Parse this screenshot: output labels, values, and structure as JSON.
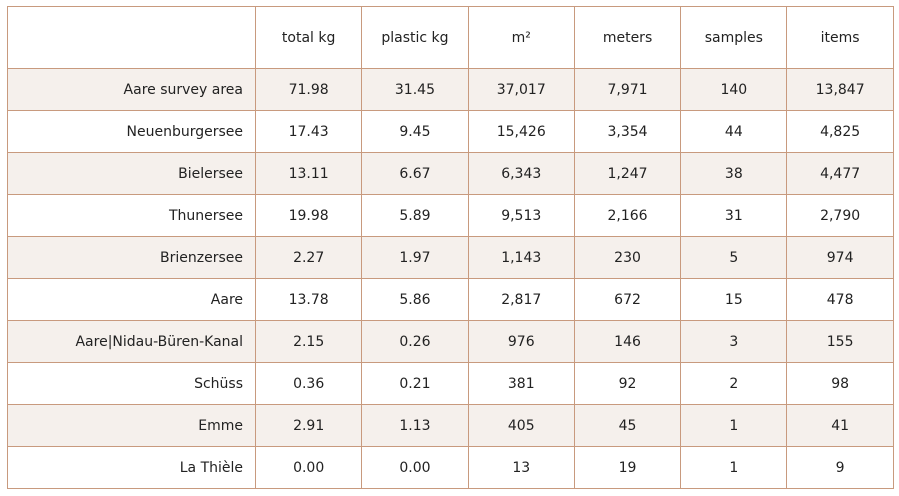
{
  "table": {
    "corner": "",
    "columns": [
      "total kg",
      "plastic kg",
      "m²",
      "meters",
      "samples",
      "items"
    ],
    "rows": [
      {
        "label": "Aare survey area",
        "cells": [
          "71.98",
          "31.45",
          "37,017",
          "7,971",
          "140",
          "13,847"
        ]
      },
      {
        "label": "Neuenburgersee",
        "cells": [
          "17.43",
          "9.45",
          "15,426",
          "3,354",
          "44",
          "4,825"
        ]
      },
      {
        "label": "Bielersee",
        "cells": [
          "13.11",
          "6.67",
          "6,343",
          "1,247",
          "38",
          "4,477"
        ]
      },
      {
        "label": "Thunersee",
        "cells": [
          "19.98",
          "5.89",
          "9,513",
          "2,166",
          "31",
          "2,790"
        ]
      },
      {
        "label": "Brienzersee",
        "cells": [
          "2.27",
          "1.97",
          "1,143",
          "230",
          "5",
          "974"
        ]
      },
      {
        "label": "Aare",
        "cells": [
          "13.78",
          "5.86",
          "2,817",
          "672",
          "15",
          "478"
        ]
      },
      {
        "label": "Aare|Nidau-Büren-Kanal",
        "cells": [
          "2.15",
          "0.26",
          "976",
          "146",
          "3",
          "155"
        ]
      },
      {
        "label": "Schüss",
        "cells": [
          "0.36",
          "0.21",
          "381",
          "92",
          "2",
          "98"
        ]
      },
      {
        "label": "Emme",
        "cells": [
          "2.91",
          "1.13",
          "405",
          "45",
          "1",
          "41"
        ]
      },
      {
        "label": "La Thièle",
        "cells": [
          "0.00",
          "0.00",
          "13",
          "19",
          "1",
          "9"
        ]
      }
    ]
  },
  "colors": {
    "border": "#c89a7e",
    "stripe": "#f5f0ec",
    "background": "#ffffff",
    "text": "#222222"
  }
}
